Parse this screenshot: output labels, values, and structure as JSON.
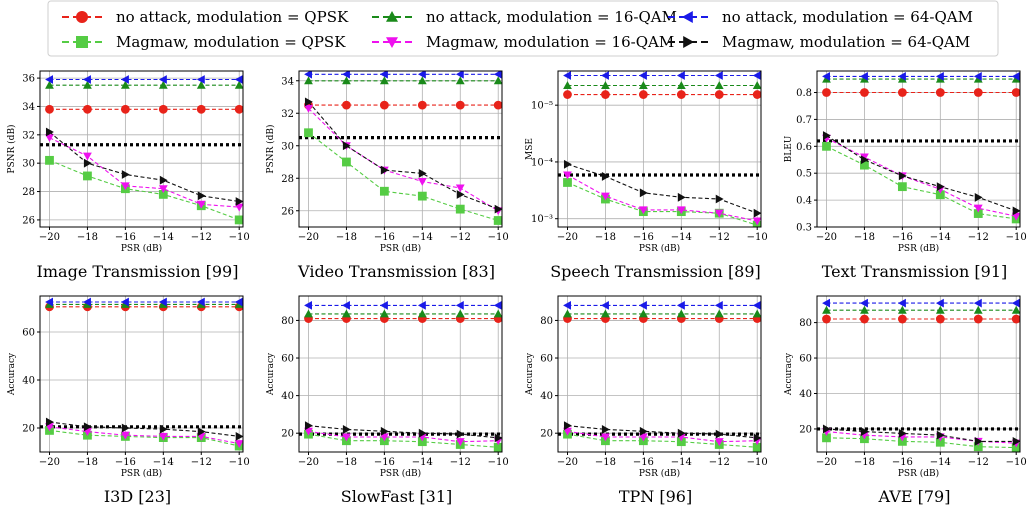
{
  "legend": [
    {
      "label": "no attack, modulation = QPSK",
      "color": "#e8231a",
      "marker": "circle"
    },
    {
      "label": "no attack, modulation = 16-QAM",
      "color": "#1a8a1a",
      "marker": "triangle-up"
    },
    {
      "label": "no attack, modulation = 64-QAM",
      "color": "#1a1ae8",
      "marker": "triangle-left"
    },
    {
      "label": "Magmaw, modulation = QPSK",
      "color": "#55cc44",
      "marker": "square"
    },
    {
      "label": "Magmaw, modulation = 16-QAM",
      "color": "#ee11ee",
      "marker": "triangle-down"
    },
    {
      "label": "Magmaw, modulation = 64-QAM",
      "color": "#111111",
      "marker": "triangle-right"
    }
  ],
  "chart_data": [
    {
      "type": "line",
      "caption": "Image Transmission [99]",
      "xlabel": "PSR (dB)",
      "ylabel": "PSNR (dB)",
      "scale": "linear",
      "x": [
        -20,
        -18,
        -16,
        -14,
        -12,
        -10
      ],
      "xticks": [
        "−20",
        "−18",
        "−16",
        "−14",
        "−12",
        "−10"
      ],
      "ylim": [
        25.5,
        36.5
      ],
      "yticks": [
        26,
        28,
        30,
        32,
        34,
        36
      ],
      "ytick_labels": [
        "26",
        "28",
        "30",
        "32",
        "34",
        "36"
      ],
      "baseline": 31.3,
      "series": [
        {
          "values": [
            33.8,
            33.8,
            33.8,
            33.8,
            33.8,
            33.8
          ]
        },
        {
          "values": [
            35.5,
            35.5,
            35.5,
            35.5,
            35.5,
            35.5
          ]
        },
        {
          "values": [
            35.9,
            35.9,
            35.9,
            35.9,
            35.9,
            35.9
          ]
        },
        {
          "values": [
            30.2,
            29.1,
            28.2,
            27.8,
            27.0,
            26.0
          ]
        },
        {
          "values": [
            31.8,
            30.5,
            28.4,
            28.2,
            27.1,
            26.9
          ]
        },
        {
          "values": [
            32.2,
            30.0,
            29.2,
            28.8,
            27.7,
            27.3
          ]
        }
      ]
    },
    {
      "type": "line",
      "caption": "Video Transmission [83]",
      "xlabel": "PSR (dB)",
      "ylabel": "PSNR (dB)",
      "scale": "linear",
      "x": [
        -20,
        -18,
        -16,
        -14,
        -12,
        -10
      ],
      "xticks": [
        "−20",
        "−18",
        "−16",
        "−14",
        "−12",
        "−10"
      ],
      "ylim": [
        25.0,
        34.6
      ],
      "yticks": [
        26,
        28,
        30,
        32,
        34
      ],
      "ytick_labels": [
        "26",
        "28",
        "30",
        "32",
        "34"
      ],
      "baseline": 30.5,
      "series": [
        {
          "values": [
            32.5,
            32.5,
            32.5,
            32.5,
            32.5,
            32.5
          ]
        },
        {
          "values": [
            34.0,
            34.0,
            34.0,
            34.0,
            34.0,
            34.0
          ]
        },
        {
          "values": [
            34.4,
            34.4,
            34.4,
            34.4,
            34.4,
            34.4
          ]
        },
        {
          "values": [
            30.8,
            29.0,
            27.2,
            26.9,
            26.1,
            25.4
          ]
        },
        {
          "values": [
            32.3,
            30.0,
            28.5,
            27.8,
            27.4,
            26.0
          ]
        },
        {
          "values": [
            32.7,
            30.0,
            28.5,
            28.3,
            27.0,
            26.1
          ]
        }
      ]
    },
    {
      "type": "line",
      "caption": "Speech Transmission [89]",
      "xlabel": "PSR (dB)",
      "ylabel": "MSE",
      "scale": "log-inverted",
      "x": [
        -20,
        -18,
        -16,
        -14,
        -12,
        -10
      ],
      "xticks": [
        "−20",
        "−18",
        "−16",
        "−14",
        "−12",
        "−10"
      ],
      "ylim": [
        0.0014,
        2.5e-06
      ],
      "yticks": [
        1e-05,
        0.0001,
        0.001
      ],
      "ytick_labels": [
        "10⁻⁵",
        "10⁻⁴",
        "10⁻³"
      ],
      "baseline": 0.00017,
      "series": [
        {
          "values": [
            6.5e-06,
            6.5e-06,
            6.5e-06,
            6.5e-06,
            6.5e-06,
            6.5e-06
          ]
        },
        {
          "values": [
            4.5e-06,
            4.5e-06,
            4.5e-06,
            4.5e-06,
            4.5e-06,
            4.5e-06
          ]
        },
        {
          "values": [
            3e-06,
            3e-06,
            3e-06,
            3e-06,
            3e-06,
            3e-06
          ]
        },
        {
          "values": [
            0.00023,
            0.00045,
            0.00075,
            0.00075,
            0.0008,
            0.0013
          ]
        },
        {
          "values": [
            0.00017,
            0.0004,
            0.0007,
            0.0007,
            0.0008,
            0.0011
          ]
        },
        {
          "values": [
            0.00011,
            0.00018,
            0.00035,
            0.00042,
            0.00045,
            0.0008
          ]
        }
      ]
    },
    {
      "type": "line",
      "caption": "Text Transmission [91]",
      "xlabel": "PSR (dB)",
      "ylabel": "BLEU",
      "scale": "linear",
      "x": [
        -20,
        -18,
        -16,
        -14,
        -12,
        -10
      ],
      "xticks": [
        "−20",
        "−18",
        "−16",
        "−14",
        "−12",
        "−10"
      ],
      "ylim": [
        0.3,
        0.88
      ],
      "yticks": [
        0.3,
        0.4,
        0.5,
        0.6,
        0.7,
        0.8
      ],
      "ytick_labels": [
        "0.3",
        "0.4",
        "0.5",
        "0.6",
        "0.7",
        "0.8"
      ],
      "baseline": 0.62,
      "series": [
        {
          "values": [
            0.8,
            0.8,
            0.8,
            0.8,
            0.8,
            0.8
          ]
        },
        {
          "values": [
            0.85,
            0.85,
            0.85,
            0.85,
            0.85,
            0.85
          ]
        },
        {
          "values": [
            0.86,
            0.86,
            0.86,
            0.86,
            0.86,
            0.86
          ]
        },
        {
          "values": [
            0.6,
            0.53,
            0.45,
            0.42,
            0.35,
            0.33
          ]
        },
        {
          "values": [
            0.63,
            0.56,
            0.49,
            0.44,
            0.37,
            0.34
          ]
        },
        {
          "values": [
            0.64,
            0.55,
            0.49,
            0.45,
            0.41,
            0.36
          ]
        }
      ]
    },
    {
      "type": "line",
      "caption": "I3D [23]",
      "xlabel": "PSR (dB)",
      "ylabel": "Accuracy",
      "scale": "linear",
      "x": [
        -20,
        -18,
        -16,
        -14,
        -12,
        -10
      ],
      "xticks": [
        "−20",
        "−18",
        "−16",
        "−14",
        "−12",
        "−10"
      ],
      "ylim": [
        10,
        75
      ],
      "yticks": [
        20,
        40,
        60
      ],
      "ytick_labels": [
        "20",
        "40",
        "60"
      ],
      "baseline": 20.5,
      "series": [
        {
          "values": [
            70.5,
            70.5,
            70.5,
            70.5,
            70.5,
            70.5
          ]
        },
        {
          "values": [
            71.5,
            71.5,
            71.5,
            71.5,
            71.5,
            71.5
          ]
        },
        {
          "values": [
            72.5,
            72.5,
            72.5,
            72.5,
            72.5,
            72.5
          ]
        },
        {
          "values": [
            19.0,
            17.0,
            16.5,
            16.0,
            16.0,
            12.5
          ]
        },
        {
          "values": [
            20.5,
            18.5,
            17.0,
            16.5,
            16.5,
            13.5
          ]
        },
        {
          "values": [
            22.5,
            20.5,
            20.0,
            19.5,
            18.5,
            16.5
          ]
        }
      ]
    },
    {
      "type": "line",
      "caption": "SlowFast [31]",
      "xlabel": "PSR (dB)",
      "ylabel": "Accuracy",
      "scale": "linear",
      "x": [
        -20,
        -18,
        -16,
        -14,
        -12,
        -10
      ],
      "xticks": [
        "−20",
        "−18",
        "−16",
        "−14",
        "−12",
        "−10"
      ],
      "ylim": [
        10,
        93
      ],
      "yticks": [
        20,
        40,
        60,
        80
      ],
      "ytick_labels": [
        "20",
        "40",
        "60",
        "80"
      ],
      "baseline": 19.5,
      "series": [
        {
          "values": [
            81.0,
            81.0,
            81.0,
            81.0,
            81.0,
            81.0
          ]
        },
        {
          "values": [
            83.5,
            83.5,
            83.5,
            83.5,
            83.5,
            83.5
          ]
        },
        {
          "values": [
            88.0,
            88.0,
            88.0,
            88.0,
            88.0,
            88.0
          ]
        },
        {
          "values": [
            19.5,
            16.0,
            16.0,
            15.5,
            14.0,
            12.5
          ]
        },
        {
          "values": [
            21.0,
            18.0,
            18.0,
            18.0,
            15.5,
            16.0
          ]
        },
        {
          "values": [
            24.0,
            22.0,
            21.0,
            20.0,
            19.5,
            17.5
          ]
        }
      ]
    },
    {
      "type": "line",
      "caption": "TPN [96]",
      "xlabel": "PSR (dB)",
      "ylabel": "Accuracy",
      "scale": "linear",
      "x": [
        -20,
        -18,
        -16,
        -14,
        -12,
        -10
      ],
      "xticks": [
        "−20",
        "−18",
        "−16",
        "−14",
        "−12",
        "−10"
      ],
      "ylim": [
        10,
        93
      ],
      "yticks": [
        20,
        40,
        60,
        80
      ],
      "ytick_labels": [
        "20",
        "40",
        "60",
        "80"
      ],
      "baseline": 19.5,
      "series": [
        {
          "values": [
            81.0,
            81.0,
            81.0,
            81.0,
            81.0,
            81.0
          ]
        },
        {
          "values": [
            83.5,
            83.5,
            83.5,
            83.5,
            83.5,
            83.5
          ]
        },
        {
          "values": [
            88.0,
            88.0,
            88.0,
            88.0,
            88.0,
            88.0
          ]
        },
        {
          "values": [
            19.5,
            16.0,
            16.0,
            15.5,
            14.0,
            12.5
          ]
        },
        {
          "values": [
            21.0,
            18.0,
            18.0,
            18.0,
            15.5,
            16.0
          ]
        },
        {
          "values": [
            24.0,
            22.0,
            21.0,
            20.0,
            19.5,
            17.5
          ]
        }
      ]
    },
    {
      "type": "line",
      "caption": "AVE [79]",
      "xlabel": "PSR (dB)",
      "ylabel": "Accuracy",
      "scale": "linear",
      "x": [
        -20,
        -18,
        -16,
        -14,
        -12,
        -10
      ],
      "xticks": [
        "−20",
        "−18",
        "−16",
        "−14",
        "−12",
        "−10"
      ],
      "ylim": [
        7,
        95
      ],
      "yticks": [
        20,
        40,
        60,
        80
      ],
      "ytick_labels": [
        "20",
        "40",
        "60",
        "80"
      ],
      "baseline": 20.0,
      "series": [
        {
          "values": [
            82.0,
            82.0,
            82.0,
            82.0,
            82.0,
            82.0
          ]
        },
        {
          "values": [
            87.0,
            87.0,
            87.0,
            87.0,
            87.0,
            87.0
          ]
        },
        {
          "values": [
            91.0,
            91.0,
            91.0,
            91.0,
            91.0,
            91.0
          ]
        },
        {
          "values": [
            15.0,
            14.5,
            13.0,
            12.5,
            10.0,
            9.5
          ]
        },
        {
          "values": [
            18.5,
            16.5,
            15.5,
            15.5,
            13.0,
            12.0
          ]
        },
        {
          "values": [
            20.0,
            18.5,
            17.5,
            16.5,
            13.0,
            13.0
          ]
        }
      ]
    }
  ]
}
